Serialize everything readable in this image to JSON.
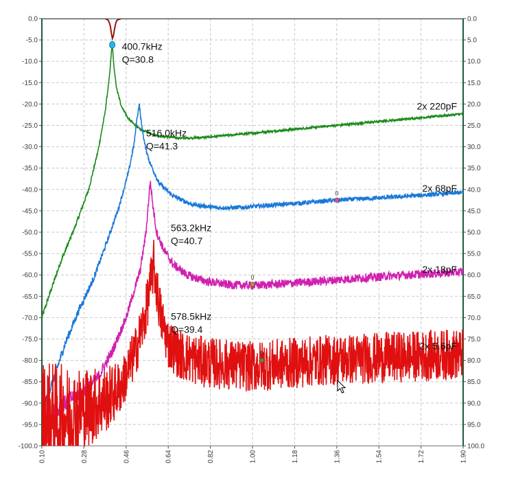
{
  "chart_data": {
    "type": "line",
    "title": "",
    "xlabel": "",
    "ylabel": "",
    "xlim": [
      0.1,
      1.9
    ],
    "ylim": [
      -100.0,
      0.0
    ],
    "grid": true,
    "legend": "none",
    "x_ticks": [
      "0.10",
      "0.28",
      "0.46",
      "0.64",
      "0.82",
      "1.00",
      "1.18",
      "1.36",
      "1.54",
      "1.72",
      "1.90"
    ],
    "y_ticks": [
      "0.0",
      "-5.0",
      "-10.0",
      "-15.0",
      "-20.0",
      "-25.0",
      "-30.0",
      "-35.0",
      "-40.0",
      "-45.0",
      "-50.0",
      "-55.0",
      "-60.0",
      "-65.0",
      "-70.0",
      "-75.0",
      "-80.0",
      "-85.0",
      "-90.0",
      "-95.0",
      "-100.0"
    ],
    "y_ticks_right": [
      "0.0",
      "5.0",
      "10.0",
      "15.0",
      "20.0",
      "25.0",
      "30.0",
      "35.0",
      "40.0",
      "45.0",
      "50.0",
      "55.0",
      "60.0",
      "65.0",
      "70.0",
      "75.0",
      "80.0",
      "85.0",
      "90.0",
      "95.0",
      "100.0"
    ],
    "series": [
      {
        "name": "2x 220pF",
        "color": "#1a8a1a",
        "noise": 0.25,
        "x": [
          0.1,
          0.13,
          0.18,
          0.24,
          0.3,
          0.34,
          0.37,
          0.39,
          0.397,
          0.4007,
          0.404,
          0.41,
          0.42,
          0.44,
          0.47,
          0.52,
          0.6,
          0.7,
          0.8,
          0.9,
          1.0,
          1.2,
          1.4,
          1.6,
          1.8,
          1.9
        ],
        "y": [
          -70.0,
          -65.0,
          -57.0,
          -49.0,
          -40.0,
          -31.0,
          -22.0,
          -13.0,
          -8.0,
          -6.0,
          -8.5,
          -12.5,
          -16.5,
          -20.5,
          -23.5,
          -26.0,
          -27.5,
          -28.0,
          -27.8,
          -27.3,
          -26.8,
          -25.8,
          -24.8,
          -23.8,
          -22.8,
          -22.3
        ]
      },
      {
        "name": "2x 68pF",
        "color": "#1a78d8",
        "noise": 0.5,
        "x": [
          0.1,
          0.14,
          0.2,
          0.26,
          0.32,
          0.38,
          0.43,
          0.47,
          0.495,
          0.505,
          0.516,
          0.525,
          0.54,
          0.56,
          0.6,
          0.66,
          0.74,
          0.85,
          0.95,
          1.05,
          1.2,
          1.36,
          1.6,
          1.9
        ],
        "y": [
          -92.0,
          -86.0,
          -76.0,
          -68.0,
          -61.0,
          -52.0,
          -44.0,
          -36.0,
          -29.0,
          -24.0,
          -20.0,
          -24.5,
          -29.5,
          -33.5,
          -38.5,
          -41.5,
          -43.5,
          -44.3,
          -44.2,
          -43.8,
          -43.2,
          -42.5,
          -41.8,
          -40.7
        ]
      },
      {
        "name": "2x 18pF",
        "color": "#d020b0",
        "noise": 1.0,
        "x": [
          0.1,
          0.16,
          0.22,
          0.28,
          0.34,
          0.4,
          0.46,
          0.52,
          0.545,
          0.563,
          0.575,
          0.59,
          0.62,
          0.66,
          0.72,
          0.8,
          0.9,
          1.0,
          1.2,
          1.4,
          1.6,
          1.9
        ],
        "y": [
          -93.0,
          -92.0,
          -89.0,
          -87.0,
          -84.0,
          -78.0,
          -70.0,
          -59.0,
          -50.0,
          -38.0,
          -44.0,
          -50.0,
          -54.0,
          -57.5,
          -60.0,
          -61.5,
          -62.3,
          -62.5,
          -61.8,
          -61.0,
          -60.2,
          -59.3
        ]
      },
      {
        "name": "2x 5.6pF",
        "color": "#e01010",
        "noise": 6.0,
        "x": [
          0.1,
          0.2,
          0.3,
          0.38,
          0.44,
          0.5,
          0.54,
          0.565,
          0.578,
          0.59,
          0.61,
          0.64,
          0.7,
          0.8,
          0.9,
          1.0,
          1.1,
          1.3,
          1.5,
          1.7,
          1.9
        ],
        "y": [
          -94.0,
          -93.0,
          -91.0,
          -89.0,
          -86.0,
          -78.0,
          -70.0,
          -62.0,
          -57.5,
          -63.0,
          -70.0,
          -76.0,
          -79.0,
          -80.5,
          -81.0,
          -81.5,
          -81.0,
          -80.0,
          -79.5,
          -79.0,
          -78.5
        ]
      },
      {
        "name": "dark red trace",
        "color": "#9a1010",
        "noise": 0.0,
        "x": [
          0.1,
          0.37,
          0.385,
          0.393,
          0.398,
          0.402,
          0.407,
          0.412,
          0.42,
          0.44,
          1.9
        ],
        "y": [
          0.0,
          0.0,
          -0.4,
          -1.8,
          -3.8,
          -4.8,
          -3.8,
          -1.8,
          -0.4,
          0.0,
          0.0
        ]
      },
      {
        "name": "top trace",
        "color": "#0f3a3a",
        "noise": 0.0,
        "x": [
          0.1,
          1.9
        ],
        "y": [
          0.0,
          0.0
        ]
      }
    ],
    "annotations": [
      {
        "x": 0.4007,
        "y": -6.0,
        "line1": "400.7kHz",
        "line2": "Q=30.8"
      },
      {
        "x": 0.516,
        "y": -20.0,
        "line1": "516.0kHz",
        "line2": "Q=41.3"
      },
      {
        "x": 0.563,
        "y": -38.0,
        "line1": "563.2kHz",
        "line2": "Q=40.7"
      },
      {
        "x": 0.578,
        "y": -57.5,
        "line1": "578.5kHz",
        "line2": "Q=39.4"
      }
    ],
    "trace_labels": [
      "2x 220pF",
      "2x 68pF",
      "2x 18pF",
      "2x 5.6pF"
    ],
    "markers": [
      {
        "label": "0",
        "x": 1.36,
        "y": -42.5,
        "color": "#e0508a"
      },
      {
        "label": "0",
        "x": 1.0,
        "y": -62.2,
        "color": "#c89030"
      },
      {
        "label": "0",
        "x": 1.04,
        "y": -80.0,
        "color": "#6a8a20"
      }
    ]
  }
}
